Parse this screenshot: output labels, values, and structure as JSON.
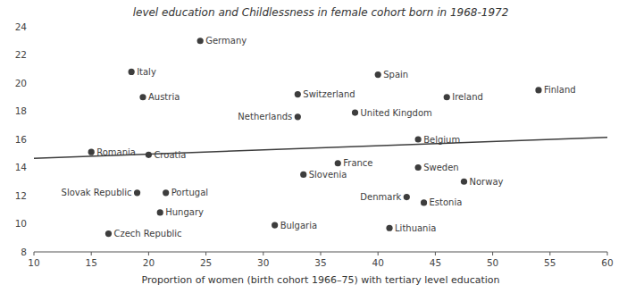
{
  "chart_data": {
    "type": "scatter",
    "title": "level education and Childlessness in female cohort born in 1968-1972",
    "x_label": "Proportion of women (birth cohort 1966–75) with tertiary level education",
    "xlim": [
      10,
      60
    ],
    "ylim": [
      8,
      24
    ],
    "xticks": [
      10,
      15,
      20,
      25,
      30,
      35,
      40,
      45,
      50,
      55,
      60
    ],
    "yticks": [
      8,
      10,
      12,
      14,
      16,
      18,
      20,
      22,
      24
    ],
    "grid": false,
    "series": [
      {
        "type": "scatter",
        "color": "#3d3d3d",
        "x": [
          24.5,
          18.5,
          19.5,
          33.0,
          33.0,
          38.0,
          40.0,
          46.0,
          54.0,
          43.5,
          15.0,
          20.0,
          36.5,
          33.5,
          43.5,
          47.5,
          19.0,
          21.5,
          21.0,
          31.0,
          16.5,
          42.5,
          44.0,
          41.0
        ],
        "values": [
          23.0,
          20.8,
          19.0,
          19.2,
          17.6,
          17.9,
          20.6,
          19.0,
          19.5,
          16.0,
          15.1,
          14.9,
          14.3,
          13.5,
          14.0,
          13.0,
          12.2,
          12.2,
          10.8,
          9.9,
          9.3,
          11.9,
          11.5,
          9.7
        ],
        "annotations": [
          "Germany",
          "Italy",
          "Austria",
          "Switzerland",
          "Netherlands",
          "United Kingdom",
          "Spain",
          "Ireland",
          "Finland",
          "Belgium",
          "Romania",
          "Croatia",
          "France",
          "Slovenia",
          "Sweden",
          "Norway",
          "Slovak Republic",
          "Portugal",
          "Hungary",
          "Bulgaria",
          "Czech Republic",
          "Denmark",
          "Estonia",
          "Lithuania"
        ]
      },
      {
        "type": "line",
        "color": "#3d3d3d",
        "x": [
          10,
          60
        ],
        "values": [
          14.65,
          16.15
        ]
      }
    ]
  }
}
